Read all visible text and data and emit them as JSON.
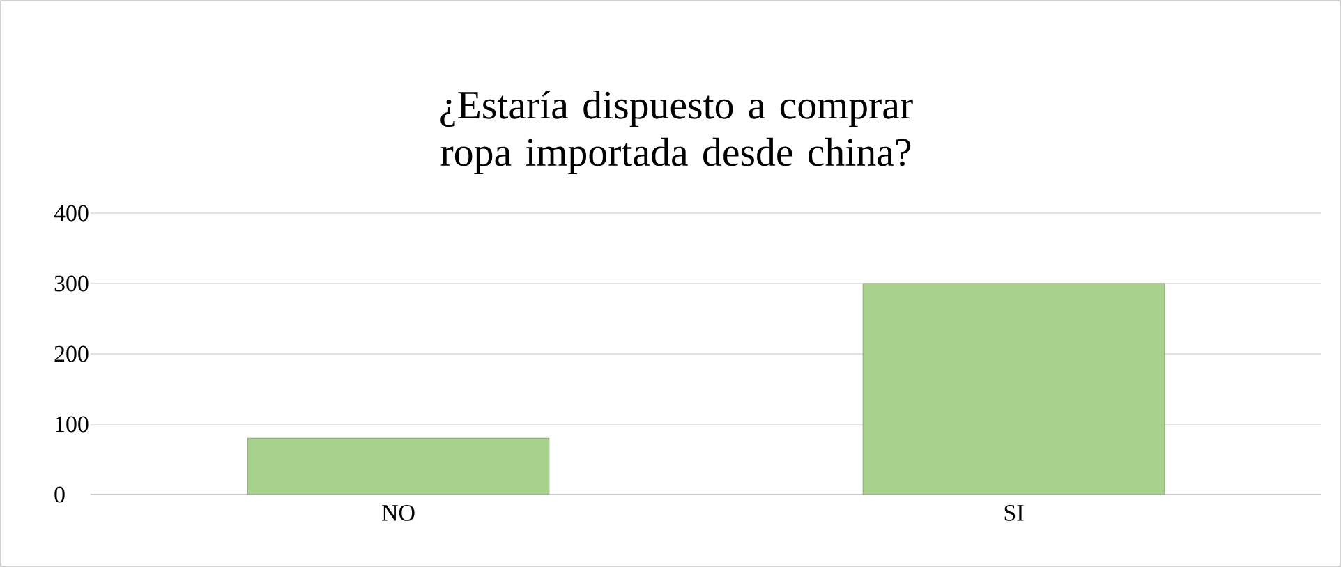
{
  "chart_data": {
    "type": "bar",
    "title": "¿Estaría dispuesto a comprar ropa importada desde china?",
    "categories": [
      "NO",
      "SI"
    ],
    "values": [
      80,
      300
    ],
    "color": "#a9d18e",
    "ylim": [
      0,
      400
    ],
    "yticks": [
      0,
      100,
      200,
      300,
      400
    ],
    "grid": "y"
  }
}
